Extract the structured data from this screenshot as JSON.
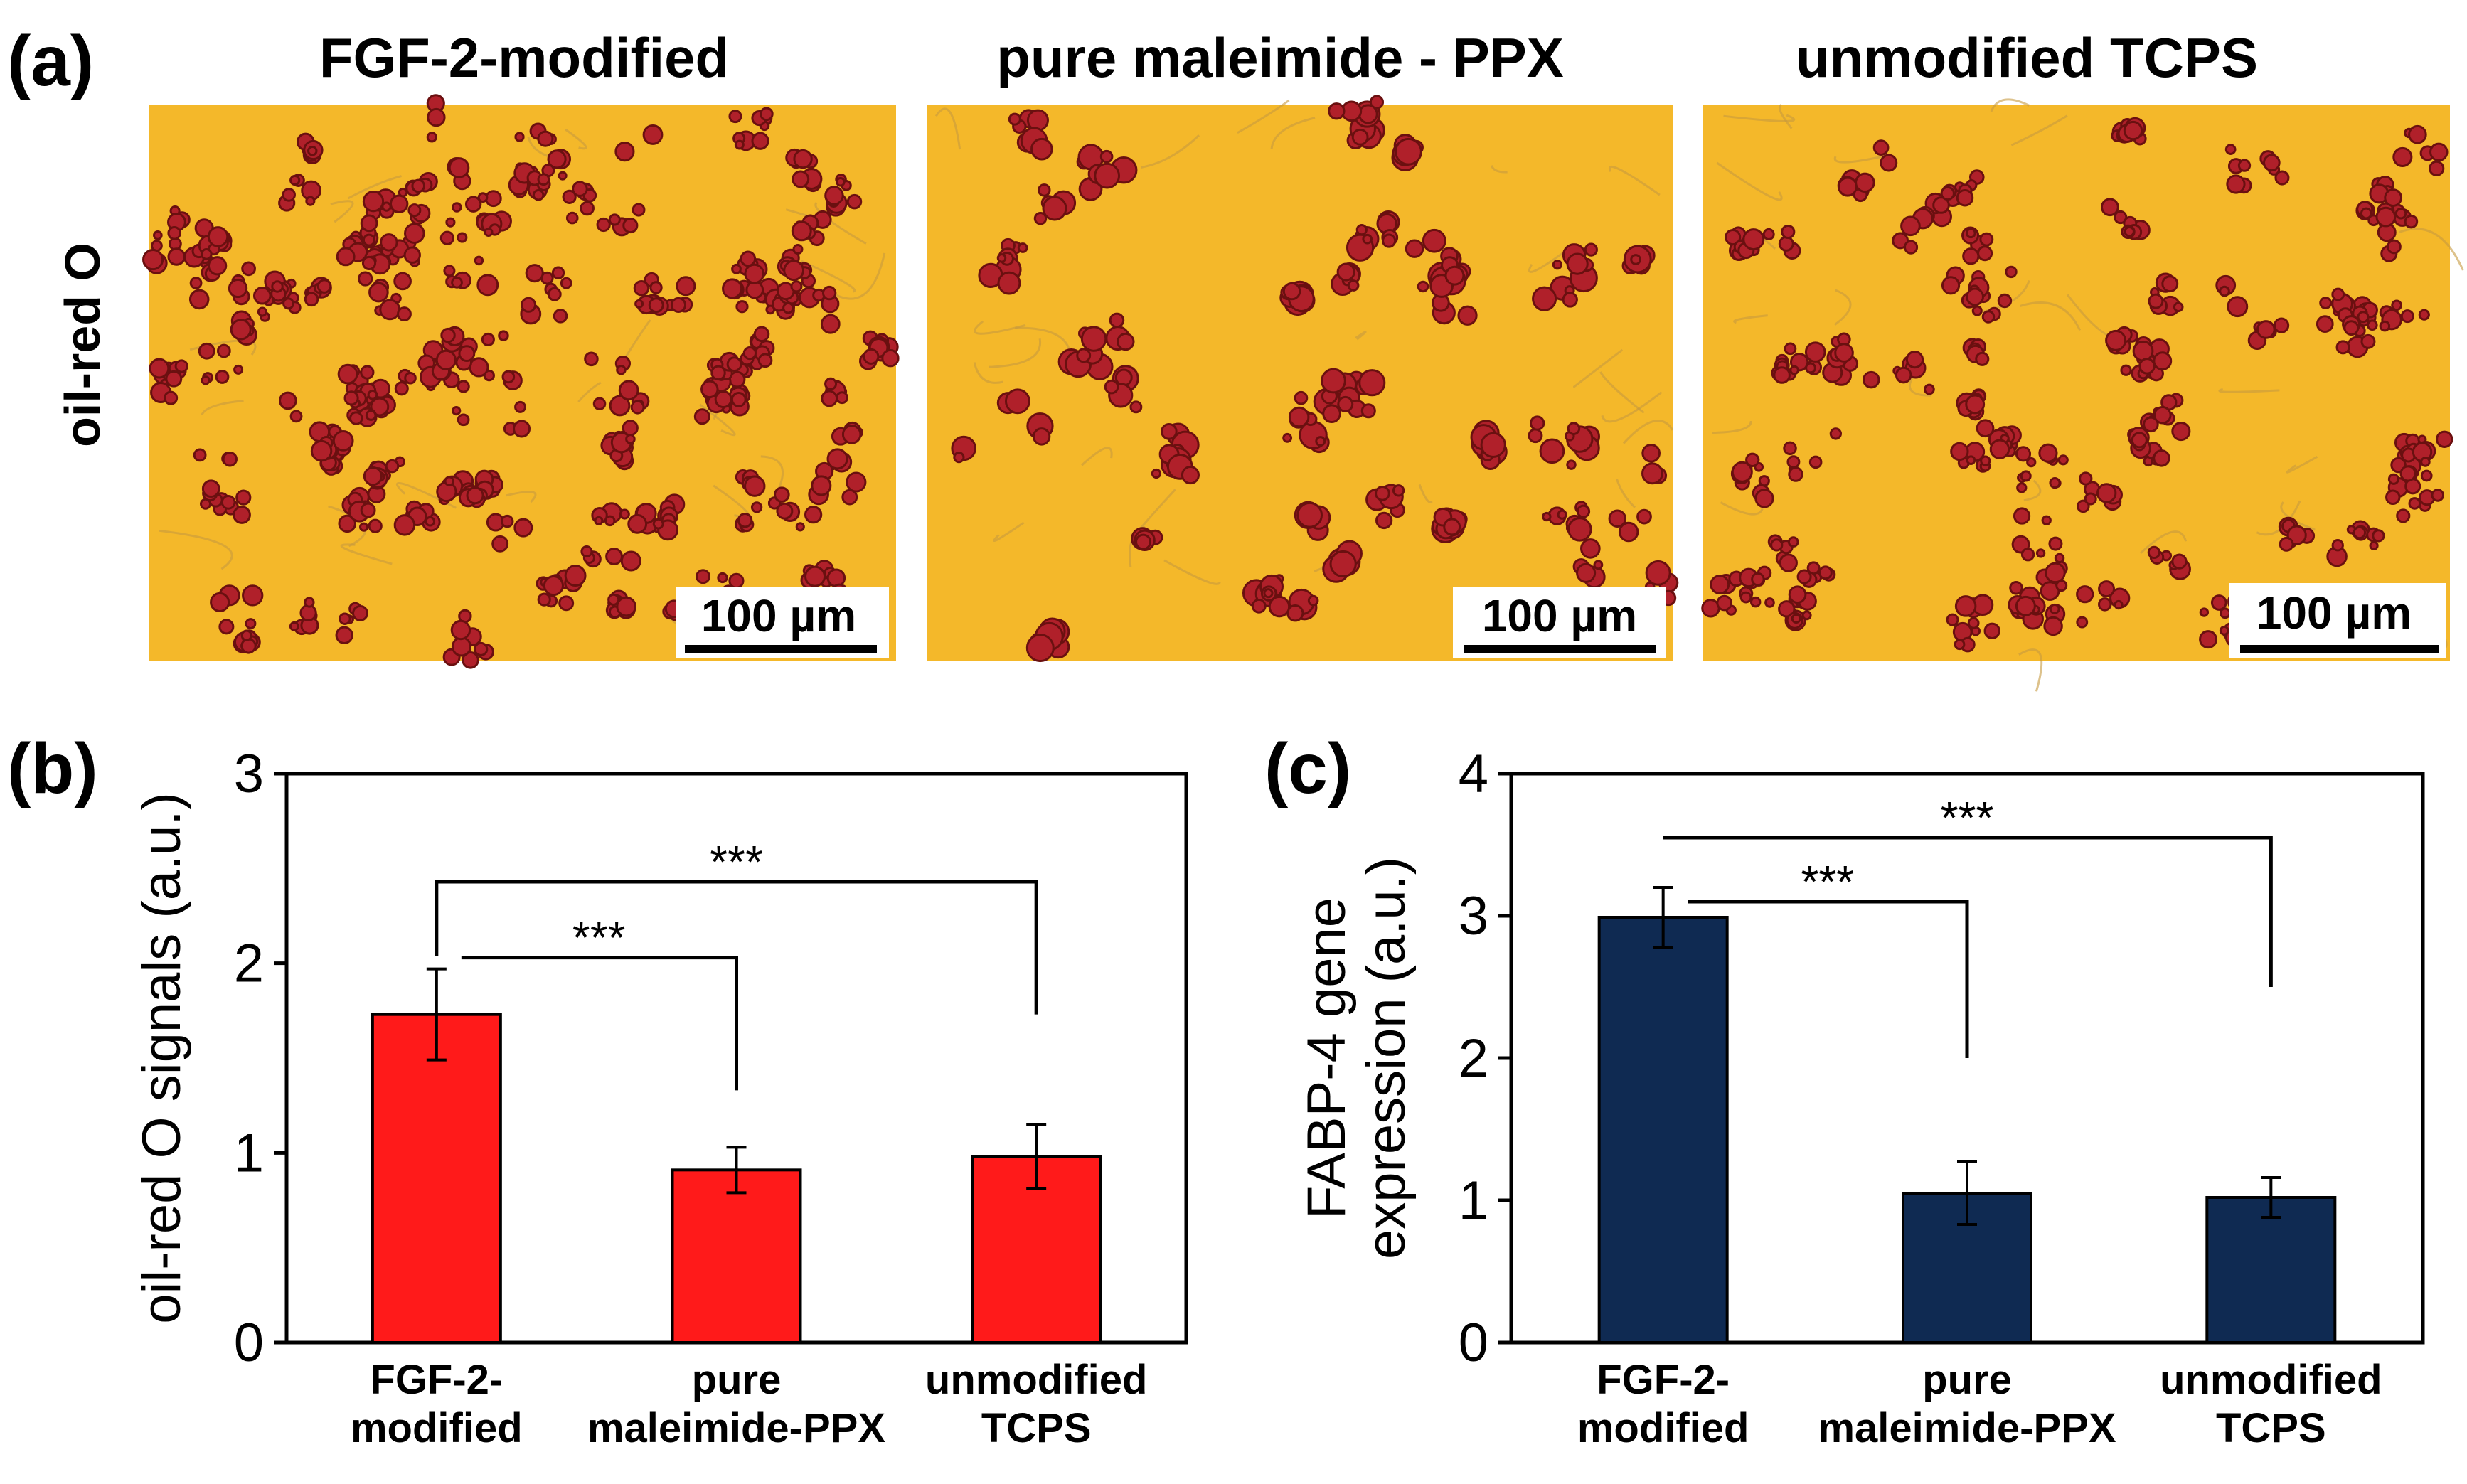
{
  "panel_a": {
    "label": "(a)",
    "row_label": "oil-red O",
    "scale_label": "100 µm",
    "images": [
      {
        "title": "FGF-2-modified",
        "density": "high"
      },
      {
        "title": "pure maleimide - PPX",
        "density": "low"
      },
      {
        "title": "unmodified TCPS",
        "density": "medium"
      }
    ],
    "colors": {
      "background": "#f4b82a",
      "cell": "#b0202a",
      "cell_dark": "#6a1010",
      "membrane": "#c79a40"
    }
  },
  "chart_data": [
    {
      "type": "bar",
      "panel_label": "(b)",
      "categories": [
        [
          "FGF-2-",
          "modified"
        ],
        [
          "pure",
          "maleimide-PPX"
        ],
        [
          "unmodified",
          "TCPS"
        ]
      ],
      "values": [
        1.73,
        0.91,
        0.98
      ],
      "errors": [
        0.24,
        0.12,
        0.17
      ],
      "ylabel": "oil-red O signals (a.u.)",
      "ylim": [
        0,
        3
      ],
      "yticks": [
        0,
        1,
        2,
        3
      ],
      "bar_color": "#ff1a1a",
      "significance": [
        {
          "from": 0,
          "to": 1,
          "label": "***",
          "level": 2.03,
          "drop_to": 1.33
        },
        {
          "from": 0,
          "to": 2,
          "label": "***",
          "level": 2.43,
          "drop_to": 1.73
        }
      ]
    },
    {
      "type": "bar",
      "panel_label": "(c)",
      "categories": [
        [
          "FGF-2-",
          "modified"
        ],
        [
          "pure",
          "maleimide-PPX"
        ],
        [
          "unmodified",
          "TCPS"
        ]
      ],
      "values": [
        2.99,
        1.05,
        1.02
      ],
      "errors": [
        0.21,
        0.22,
        0.14
      ],
      "ylabel": [
        "FABP-4 gene",
        "expression (a.u.)"
      ],
      "ylim": [
        0,
        4
      ],
      "yticks": [
        0,
        1,
        2,
        3,
        4
      ],
      "bar_color": "#0f2a52",
      "significance": [
        {
          "from": 0,
          "to": 1,
          "label": "***",
          "level": 3.1,
          "drop_to": 2.0
        },
        {
          "from": 0,
          "to": 2,
          "label": "***",
          "level": 3.55,
          "drop_to": 2.5
        }
      ]
    }
  ]
}
